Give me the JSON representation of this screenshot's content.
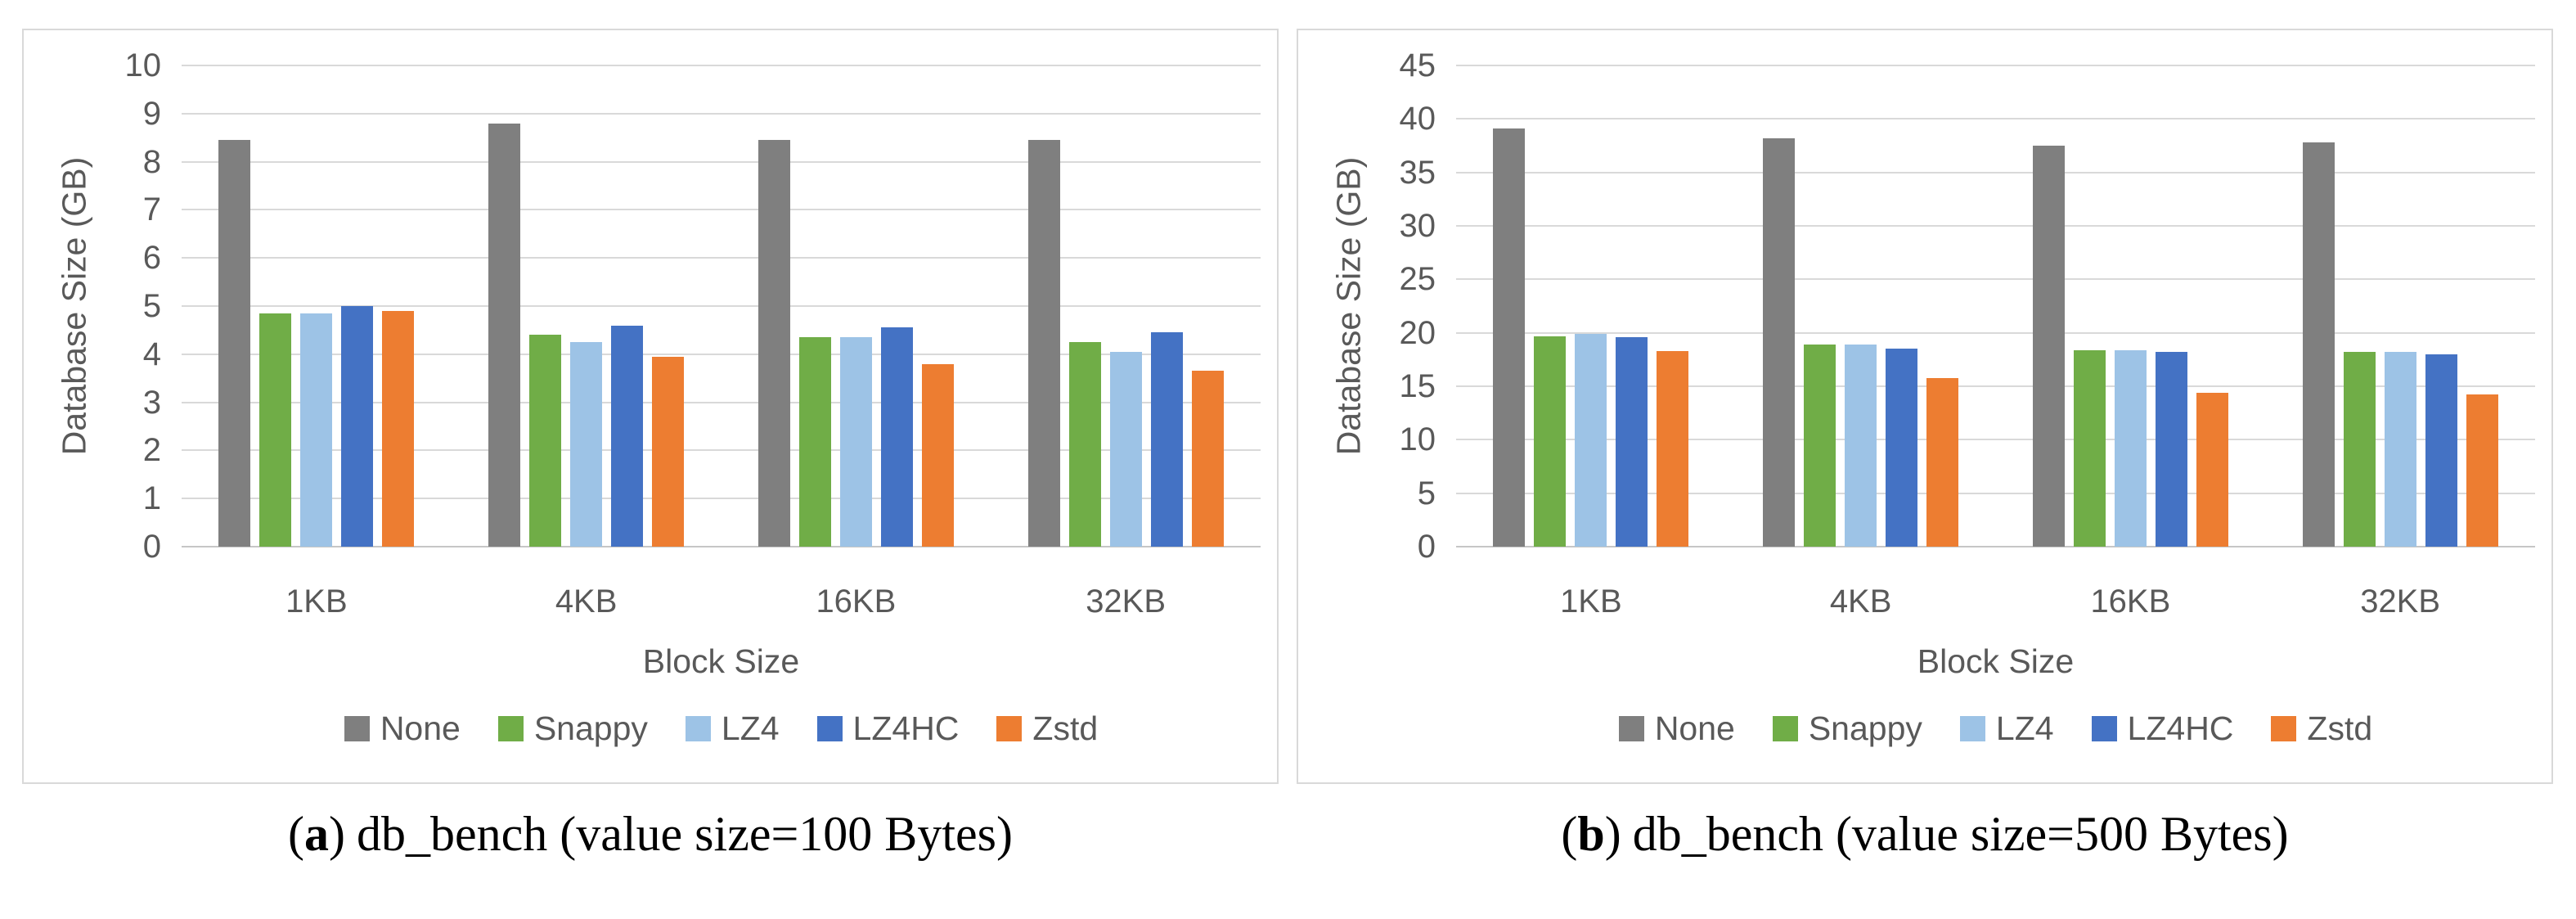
{
  "figure": {
    "captions": [
      {
        "paren_open": "(",
        "letter": "a",
        "paren_close": ")",
        "text": "db_bench (value size=100 Bytes)"
      },
      {
        "paren_open": "(",
        "letter": "b",
        "paren_close": ")",
        "text": "db_bench (value size=500 Bytes)"
      }
    ]
  },
  "colors": {
    "none": "#7F7F7F",
    "snappy": "#70AD47",
    "lz4": "#9DC3E6",
    "lz4hc": "#4472C4",
    "zstd": "#ED7D31",
    "gridline": "#D9D9D9",
    "axis_text": "#595959"
  },
  "chart_data": [
    {
      "type": "bar",
      "title": "",
      "categories": [
        "1KB",
        "4KB",
        "16KB",
        "32KB"
      ],
      "series": [
        {
          "name": "None",
          "color": "#7F7F7F",
          "values": [
            8.45,
            8.8,
            8.45,
            8.45
          ]
        },
        {
          "name": "Snappy",
          "color": "#70AD47",
          "values": [
            4.85,
            4.4,
            4.35,
            4.25
          ]
        },
        {
          "name": "LZ4",
          "color": "#9DC3E6",
          "values": [
            4.85,
            4.25,
            4.35,
            4.05
          ]
        },
        {
          "name": "LZ4HC",
          "color": "#4472C4",
          "values": [
            5.0,
            4.6,
            4.55,
            4.45
          ]
        },
        {
          "name": "Zstd",
          "color": "#ED7D31",
          "values": [
            4.9,
            3.95,
            3.8,
            3.65
          ]
        }
      ],
      "xlabel": "Block Size",
      "ylabel": "Database Size (GB)",
      "ylim": [
        0,
        10
      ],
      "ytick_step": 1,
      "grid": true,
      "legend_position": "bottom"
    },
    {
      "type": "bar",
      "title": "",
      "categories": [
        "1KB",
        "4KB",
        "16KB",
        "32KB"
      ],
      "series": [
        {
          "name": "None",
          "color": "#7F7F7F",
          "values": [
            39.1,
            38.2,
            37.5,
            37.8
          ]
        },
        {
          "name": "Snappy",
          "color": "#70AD47",
          "values": [
            19.7,
            18.9,
            18.4,
            18.2
          ]
        },
        {
          "name": "LZ4",
          "color": "#9DC3E6",
          "values": [
            19.9,
            18.9,
            18.4,
            18.2
          ]
        },
        {
          "name": "LZ4HC",
          "color": "#4472C4",
          "values": [
            19.6,
            18.5,
            18.2,
            18.0
          ]
        },
        {
          "name": "Zstd",
          "color": "#ED7D31",
          "values": [
            18.3,
            15.8,
            14.4,
            14.2
          ]
        }
      ],
      "xlabel": "Block Size",
      "ylabel": "Database Size (GB)",
      "ylim": [
        0,
        45
      ],
      "ytick_step": 5,
      "grid": true,
      "legend_position": "bottom"
    }
  ]
}
